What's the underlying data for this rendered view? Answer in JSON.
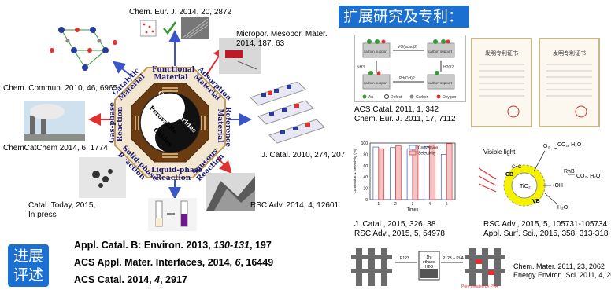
{
  "hub": {
    "center": [
      "Carbon",
      "Nitrides",
      "Perovskite",
      "Oxides"
    ],
    "segments": {
      "functional": "Functional\nMaterial",
      "adsorption": "Adsorption\nMaterial",
      "reference": "Reference\nMaterial",
      "aqueous": "Aqueous\nReaction",
      "liquid": "Liquid-phase\nReaction",
      "solid": "Solid-phase\nReaction",
      "gas": "Gas-phase\nReaction",
      "catalytic": "Catalytic\nMaterial"
    }
  },
  "citations": {
    "chem_eur": "Chem. Eur. J. 2014, 20, 2872",
    "micropor": "Micropor. Mesopor. Mater.\n2014, 187, 63",
    "chem_commun": "Chem. Commun. 2010, 46, 6965",
    "chemcatchem": "ChemCatChem 2014, 6, 1774",
    "j_catal": "J. Catal. 2010, 274, 207",
    "catal_today": "Catal. Today, 2015,\nIn press",
    "rsc_adv": "RSC Adv. 2014, 4, 12601"
  },
  "progress": {
    "badge_line1": "进展",
    "badge_line2": "评述",
    "refs": [
      {
        "a": "Appl. Catal. B: Environ. 2013, ",
        "b": "130-131",
        "c": ", 197"
      },
      {
        "a": "ACS Appl. Mater. Interfaces, 2014, ",
        "b": "6",
        "c": ", 16449"
      },
      {
        "a": "ACS Catal. 2014, ",
        "b": " 4",
        "c": ", 2917"
      }
    ]
  },
  "right": {
    "title": "扩展研究及专利：",
    "title_bg": "#1b6fd1",
    "scheme_refs": "ACS Catal. 2011, 1, 342\nChem. Eur. J. 2011, 17, 7112",
    "scheme_labels": [
      "carbon support",
      "carbon support",
      "carbon support",
      "carbon support"
    ],
    "scheme_steps": [
      "VO(acac)2",
      "H2O2",
      "Pd(OH)2",
      "NH3"
    ],
    "legend": [
      "Au",
      "Defect",
      "Carbon",
      "Oxygen"
    ],
    "patent_title": "发明专利证书",
    "chart_refs": "J. Catal., 2015, 326, 38\nRSC Adv., 2015, 5, 54978",
    "photocat_refs": "RSC Adv., 2015, 5, 105731-105734\nAppl. Surf. Sci., 2015, 358, 313-318",
    "photocat": {
      "visible_light": "Visible light",
      "o2": "O₂",
      "co2h2o_top": "CO₂, H₂O",
      "rhb": "RhB",
      "co2h2o_mid": "CO₂, H₂O",
      "oh": "•OH",
      "tio2": "TiO₂",
      "h2o": "H₂O",
      "cb": "CB",
      "vb": "VB",
      "cc": "C=C"
    },
    "bottom_refs": "Chem. Mater. 2011, 23, 2062\nEnergy Environ. Sci. 2011, 4, 2020",
    "bottom_labels": [
      "P123",
      "P123 + PVA",
      "Pore created by PVA"
    ],
    "bottom_mid": [
      "1h)",
      "ethanol",
      "H2O"
    ]
  },
  "chart_data": {
    "type": "bar",
    "xlabel": "Times",
    "ylabel": "Conversion & Selectivity (%)",
    "ylim": [
      0,
      100
    ],
    "yticks": [
      0,
      20,
      40,
      60,
      80,
      100
    ],
    "categories": [
      "1",
      "2",
      "3",
      "4",
      "5"
    ],
    "series": [
      {
        "name": "Conversion",
        "values": [
          93,
          92,
          90,
          94,
          80
        ]
      },
      {
        "name": "Selectivity",
        "values": [
          90,
          95,
          96,
          97,
          99
        ]
      }
    ],
    "legend_position": "top-right"
  },
  "colors": {
    "accent_blue": "#1b6fd1",
    "hub_brown": "#6b3c12",
    "arrow_red": "#e03030",
    "arrow_blue": "#3a55c8"
  }
}
